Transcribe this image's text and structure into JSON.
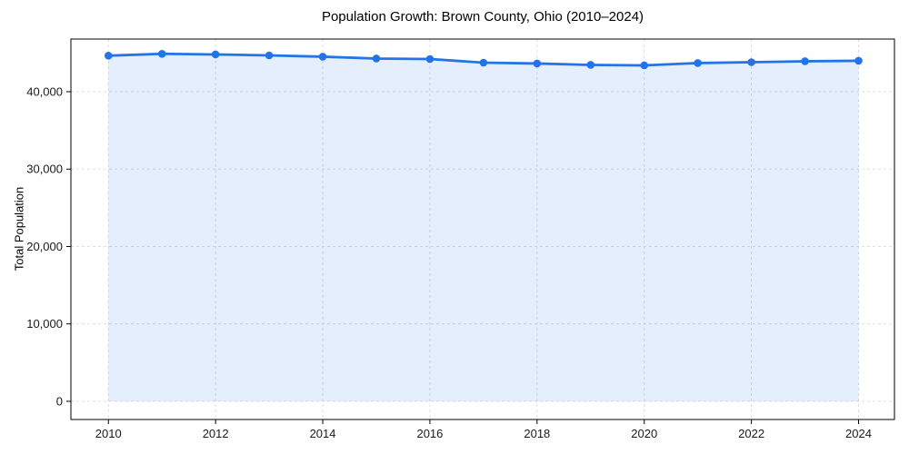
{
  "figure": {
    "title": "Population Growth: Brown County, Ohio (2010–2024)",
    "ylabel": "Total Population"
  },
  "chart_data": {
    "type": "line",
    "title": "Population Growth: Brown County, Ohio (2010–2024)",
    "xlabel": "",
    "ylabel": "Total Population",
    "x": [
      2010,
      2011,
      2012,
      2013,
      2014,
      2015,
      2016,
      2017,
      2018,
      2019,
      2020,
      2021,
      2022,
      2023,
      2024
    ],
    "series": [
      {
        "name": "Total Population",
        "values": [
          44650,
          44890,
          44810,
          44690,
          44520,
          44280,
          44220,
          43750,
          43640,
          43460,
          43400,
          43700,
          43810,
          43930,
          43990
        ]
      }
    ],
    "xticks": [
      2010,
      2012,
      2014,
      2016,
      2018,
      2020,
      2022,
      2024
    ],
    "yticks": [
      0,
      10000,
      20000,
      30000,
      40000
    ],
    "xlim": [
      2009.3,
      2024.67
    ],
    "ylim": [
      -2350,
      46800
    ],
    "grid": true,
    "grid_style": "dashed",
    "legend_position": "none",
    "marker": "circle",
    "area_fill": true,
    "colors": {
      "line": "#2274e8",
      "fill": "rgba(34,116,232,0.12)",
      "grid": "#d9d9d9",
      "axis": "#000000",
      "text": "#1a1a1a",
      "background": "#ffffff"
    }
  }
}
